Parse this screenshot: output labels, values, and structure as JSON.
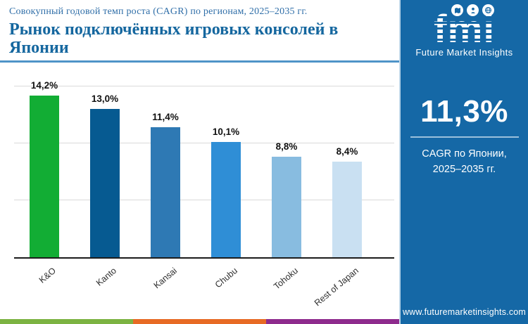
{
  "header": {
    "subtitle": "Совокупный годовой темп роста (CAGR) по регионам, 2025–2035 гг.",
    "title": "Рынок подключённых игровых консолей в Японии"
  },
  "chart_data": {
    "type": "bar",
    "categories": [
      "K&O",
      "Kanto",
      "Kansai",
      "Chubu",
      "Tohoku",
      "Rest of Japan"
    ],
    "values": [
      14.2,
      13.0,
      11.4,
      10.1,
      8.8,
      8.4
    ],
    "value_labels": [
      "14,2%",
      "13,0%",
      "11,4%",
      "10,1%",
      "8,8%",
      "8,4%"
    ],
    "bar_colors": [
      "#12ad34",
      "#065a91",
      "#2e79b4",
      "#2f8ed6",
      "#88bce0",
      "#c9e0f2"
    ],
    "title": "",
    "xlabel": "",
    "ylabel": "",
    "ylim": [
      0,
      15
    ],
    "gridlines": [
      5,
      10,
      15
    ],
    "grid": true,
    "legend": false,
    "gridline_color": "#d9d9d9",
    "axis_line_color": "#1c1c1c"
  },
  "sidebar": {
    "background": "#1568a6",
    "logo": {
      "brand": "fmi",
      "brand_caption": "Future Market Insights",
      "icons": [
        "map",
        "person",
        "globe"
      ]
    },
    "stat_value": "11,3%",
    "stat_caption": "CAGR по Японии, 2025–2035 гг.",
    "website": "www.futuremarketinsights.com"
  },
  "footer": {
    "stripe_colors": [
      "#7cb342",
      "#e76a24",
      "#8e2b8d"
    ]
  }
}
